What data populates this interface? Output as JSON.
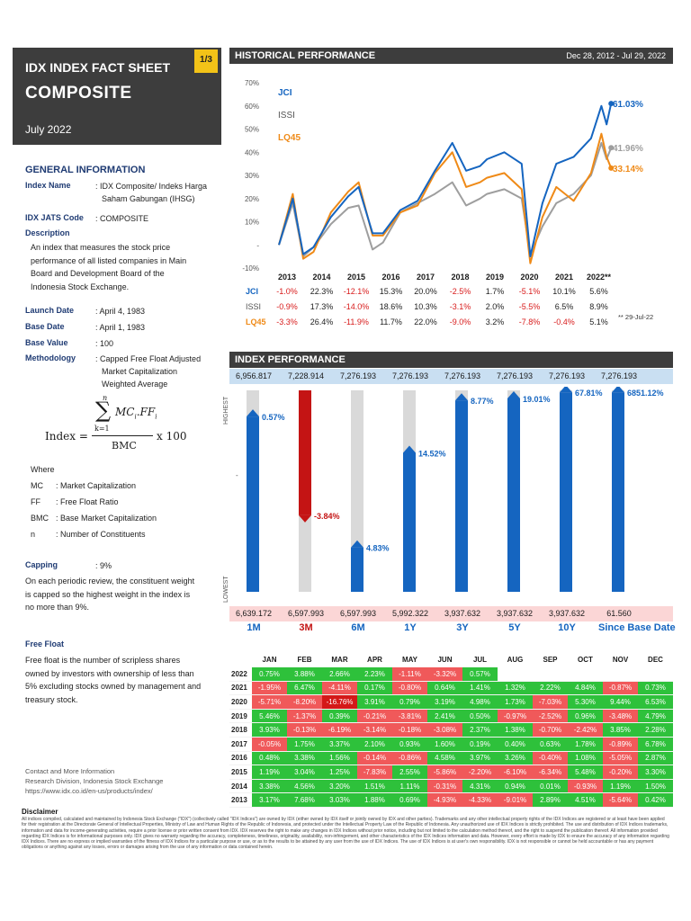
{
  "header": {
    "title_line1": "IDX INDEX FACT SHEET",
    "title_line2": "COMPOSITE",
    "period": "July 2022",
    "page_badge": "1/3"
  },
  "general_info": {
    "section_title": "GENERAL INFORMATION",
    "index_name_label": "Index Name",
    "index_name_value": ": IDX Composite/ Indeks Harga",
    "index_name_value2": "Saham Gabungan (IHSG)",
    "jats_label": "IDX JATS Code",
    "jats_value": ": COMPOSITE",
    "description_label": "Description",
    "description_lines": [
      "An index that measures the stock price",
      "performance of all listed companies in Main",
      "Board and Development Board of the",
      "Indonesia Stock Exchange."
    ],
    "launch_label": "Launch Date",
    "launch_value": ": April 4, 1983",
    "base_date_label": "Base Date",
    "base_date_value": ": April 1, 1983",
    "base_value_label": "Base Value",
    "base_value_value": ": 100",
    "methodology_label": "Methodology",
    "methodology_lines": [
      ": Capped Free Float Adjusted",
      "Market Capitalization",
      "Weighted Average"
    ]
  },
  "formula": {
    "lhs": "Index =",
    "sum_top": "n",
    "sum_sym": "∑",
    "sum_bottom": "k=1",
    "numerator": "MC",
    "numer_sub": "i",
    "numerator2": ".FF",
    "numer_sub2": "i",
    "denominator": "BMC",
    "times": "x 100"
  },
  "where": {
    "title": "Where",
    "items": [
      {
        "sym": "MC",
        "desc": ":   Market Capitalization"
      },
      {
        "sym": "FF",
        "desc": ":   Free Float Ratio"
      },
      {
        "sym": "BMC",
        "desc": ":  Base Market Capitalization"
      },
      {
        "sym": "n",
        "desc": ":   Number of Constituents"
      }
    ]
  },
  "capping": {
    "label": "Capping",
    "value": ": 9%",
    "lines": [
      "On each periodic review, the constituent weight",
      "is capped so the highest weight in the index is",
      "no more than 9%."
    ]
  },
  "free_float": {
    "label": "Free Float",
    "lines": [
      "Free float is the number of scripless shares",
      "owned by investors with ownership of less than",
      "5% excluding stocks owned by management and",
      "treasury stock."
    ]
  },
  "contact": {
    "lines": [
      "Contact and More Information",
      "Research Division, Indonesia Stock Exchange",
      "https://www.idx.co.id/en-us/products/index/"
    ]
  },
  "historical": {
    "title": "HISTORICAL PERFORMANCE",
    "range": "Dec 28, 2012 - Jul 29, 2022",
    "y_ticks": [
      "70%",
      "60%",
      "50%",
      "40%",
      "30%",
      "20%",
      "10%",
      "-",
      "-10%"
    ],
    "series_labels": [
      "JCI",
      "ISSI",
      "LQ45"
    ],
    "end_labels": [
      "61.03%",
      "41.96%",
      "33.14%"
    ],
    "colors": {
      "jci": "#1565c0",
      "issi": "#9e9e9e",
      "lq45": "#ef8a17"
    },
    "years": [
      "2013",
      "2014",
      "2015",
      "2016",
      "2017",
      "2018",
      "2019",
      "2020",
      "2021",
      "2022**"
    ],
    "rows": [
      {
        "name": "JCI",
        "values": [
          "-1.0%",
          "22.3%",
          "-12.1%",
          "15.3%",
          "20.0%",
          "-2.5%",
          "1.7%",
          "-5.1%",
          "10.1%",
          "5.6%"
        ]
      },
      {
        "name": "ISSI",
        "values": [
          "-0.9%",
          "17.3%",
          "-14.0%",
          "18.6%",
          "10.3%",
          "-3.1%",
          "2.0%",
          "-5.5%",
          "6.5%",
          "8.9%"
        ]
      },
      {
        "name": "LQ45",
        "values": [
          "-3.3%",
          "26.4%",
          "-11.9%",
          "11.7%",
          "22.0%",
          "-9.0%",
          "3.2%",
          "-7.8%",
          "-0.4%",
          "5.1%"
        ]
      }
    ],
    "footnote": "** 29-Jul-22"
  },
  "chart_data": {
    "type": "line",
    "title": "HISTORICAL PERFORMANCE",
    "x_range": [
      "Dec 28, 2012",
      "Jul 29, 2022"
    ],
    "ylim": [
      -10,
      70
    ],
    "y_unit": "%",
    "grid": false,
    "series": [
      {
        "name": "JCI",
        "color": "#1565c0",
        "x": [
          2013.0,
          2013.4,
          2013.7,
          2014.0,
          2014.5,
          2015.0,
          2015.3,
          2015.7,
          2016.0,
          2016.5,
          2017.0,
          2017.5,
          2018.0,
          2018.4,
          2018.8,
          2019.0,
          2019.5,
          2020.0,
          2020.25,
          2020.6,
          2021.0,
          2021.5,
          2022.0,
          2022.3,
          2022.45,
          2022.58
        ],
        "y": [
          0,
          20,
          -4,
          -1,
          12,
          21,
          25,
          5,
          5,
          15,
          19,
          32,
          44,
          32,
          34,
          37,
          40,
          35,
          -5,
          18,
          35,
          38,
          46,
          60,
          52,
          61.03
        ]
      },
      {
        "name": "ISSI",
        "color": "#9e9e9e",
        "x": [
          2013.0,
          2013.4,
          2013.7,
          2014.0,
          2014.5,
          2015.0,
          2015.3,
          2015.7,
          2016.0,
          2016.5,
          2017.0,
          2017.5,
          2018.0,
          2018.4,
          2018.8,
          2019.0,
          2019.5,
          2020.0,
          2020.25,
          2020.6,
          2021.0,
          2021.5,
          2022.0,
          2022.3,
          2022.45,
          2022.58
        ],
        "y": [
          0,
          18,
          -5,
          -1,
          9,
          16,
          17,
          -2,
          1,
          14,
          18,
          22,
          27,
          17,
          20,
          22,
          24,
          20,
          -4,
          8,
          18,
          22,
          30,
          44,
          37,
          41.96
        ]
      },
      {
        "name": "LQ45",
        "color": "#ef8a17",
        "x": [
          2013.0,
          2013.4,
          2013.7,
          2014.0,
          2014.5,
          2015.0,
          2015.3,
          2015.7,
          2016.0,
          2016.5,
          2017.0,
          2017.5,
          2018.0,
          2018.4,
          2018.8,
          2019.0,
          2019.5,
          2020.0,
          2020.25,
          2020.6,
          2021.0,
          2021.5,
          2022.0,
          2022.3,
          2022.45,
          2022.58
        ],
        "y": [
          0,
          22,
          -6,
          -3,
          14,
          23,
          27,
          4,
          4,
          14,
          17,
          31,
          40,
          25,
          27,
          29,
          31,
          24,
          -8,
          12,
          25,
          19,
          31,
          48,
          38,
          33.14
        ]
      }
    ]
  },
  "index_perf": {
    "title": "INDEX PERFORMANCE",
    "top_values": [
      "6,956.817",
      "7,228.914",
      "7,276.193",
      "7,276.193",
      "7,276.193",
      "7,276.193",
      "7,276.193",
      "7,276.193"
    ],
    "bottom_values": [
      "6,639.172",
      "6,597.993",
      "6,597.993",
      "5,992.322",
      "3,937.632",
      "3,937.632",
      "3,937.632",
      "61.560"
    ],
    "periods": [
      "1M",
      "3M",
      "6M",
      "1Y",
      "3Y",
      "5Y",
      "10Y",
      "Since Base Date"
    ],
    "returns": [
      "0.57%",
      "-3.84%",
      "4.83%",
      "14.52%",
      "8.77%",
      "19.01%",
      "67.81%",
      "6851.12%"
    ],
    "return_fraction": [
      0.87,
      0.38,
      0.22,
      0.69,
      0.95,
      0.96,
      0.99,
      0.99
    ],
    "highest_label": "HIGHEST",
    "lowest_label": "LOWEST",
    "mid_marker": "-"
  },
  "monthly": {
    "months": [
      "JAN",
      "FEB",
      "MAR",
      "APR",
      "MAY",
      "JUN",
      "JUL",
      "AUG",
      "SEP",
      "OCT",
      "NOV",
      "DEC"
    ],
    "rows": [
      {
        "year": "2022",
        "v": [
          "0.75%",
          "3.88%",
          "2.66%",
          "2.23%",
          "-1.11%",
          "-3.32%",
          "0.57%",
          "",
          "",
          "",
          "",
          ""
        ]
      },
      {
        "year": "2021",
        "v": [
          "-1.95%",
          "6.47%",
          "-4.11%",
          "0.17%",
          "-0.80%",
          "0.64%",
          "1.41%",
          "1.32%",
          "2.22%",
          "4.84%",
          "-0.87%",
          "0.73%"
        ]
      },
      {
        "year": "2020",
        "v": [
          "-5.71%",
          "-8.20%",
          "-16.76%",
          "3.91%",
          "0.79%",
          "3.19%",
          "4.98%",
          "1.73%",
          "-7.03%",
          "5.30%",
          "9.44%",
          "6.53%"
        ]
      },
      {
        "year": "2019",
        "v": [
          "5.46%",
          "-1.37%",
          "0.39%",
          "-0.21%",
          "-3.81%",
          "2.41%",
          "0.50%",
          "-0.97%",
          "-2.52%",
          "0.96%",
          "-3.48%",
          "4.79%"
        ]
      },
      {
        "year": "2018",
        "v": [
          "3.93%",
          "-0.13%",
          "-6.19%",
          "-3.14%",
          "-0.18%",
          "-3.08%",
          "2.37%",
          "1.38%",
          "-0.70%",
          "-2.42%",
          "3.85%",
          "2.28%"
        ]
      },
      {
        "year": "2017",
        "v": [
          "-0.05%",
          "1.75%",
          "3.37%",
          "2.10%",
          "0.93%",
          "1.60%",
          "0.19%",
          "0.40%",
          "0.63%",
          "1.78%",
          "-0.89%",
          "6.78%"
        ]
      },
      {
        "year": "2016",
        "v": [
          "0.48%",
          "3.38%",
          "1.56%",
          "-0.14%",
          "-0.86%",
          "4.58%",
          "3.97%",
          "3.26%",
          "-0.40%",
          "1.08%",
          "-5.05%",
          "2.87%"
        ]
      },
      {
        "year": "2015",
        "v": [
          "1.19%",
          "3.04%",
          "1.25%",
          "-7.83%",
          "2.55%",
          "-5.86%",
          "-2.20%",
          "-6.10%",
          "-6.34%",
          "5.48%",
          "-0.20%",
          "3.30%"
        ]
      },
      {
        "year": "2014",
        "v": [
          "3.38%",
          "4.56%",
          "3.20%",
          "1.51%",
          "1.11%",
          "-0.31%",
          "4.31%",
          "0.94%",
          "0.01%",
          "-0.93%",
          "1.19%",
          "1.50%"
        ]
      },
      {
        "year": "2013",
        "v": [
          "3.17%",
          "7.68%",
          "3.03%",
          "1.88%",
          "0.69%",
          "-4.93%",
          "-4.33%",
          "-9.01%",
          "2.89%",
          "4.51%",
          "-5.64%",
          "0.42%"
        ]
      }
    ]
  },
  "disclaimer": {
    "title": "Disclaimer",
    "text": "All indices compiled, calculated and maintained by Indonesia Stock Exchange (\"IDX\") (collectively called \"IDX Indices\") are owned by IDX (either owned by IDX itself or jointly owned by IDX and other parties). Trademarks and any other intellectual property rights of the IDX Indices are registered or at least have been applied for their registration at the Directorate General of Intellectual Properties, Ministry of Law and Human Rights of the Republic of Indonesia, and protected under the Intellectual Property Law of the Republic of Indonesia. Any unauthorized use of IDX Indices is strictly prohibited. The use and distribution of IDX Indices trademarks, information and data for income-generating activities, require a prior license or prior written consent from IDX. IDX reserves the right to make any changes in IDX Indices without prior notice, including but not limited to the calculation method thereof, and the right to suspend the publication thereof. All information provided regarding IDX Indices is for informational purposes only. IDX gives no warranty regarding the accuracy, completeness, timeliness, originality, availability, non-infringement, and other characteristics of the IDX Indices information and data. However, every effort is made by IDX to ensure the accuracy of any information regarding IDX Indices. There are no express or implied warranties of the fitness of IDX Indices for a particular purpose or use, or as to the results to be attained by any user from the use of IDX Indices. The use of IDX Indices is at user's own responsibility. IDX is not responsible or cannot be held accountable or has any payment obligations or anything against any losses, errors or damages arising from the use of any information or data contained herein."
  }
}
